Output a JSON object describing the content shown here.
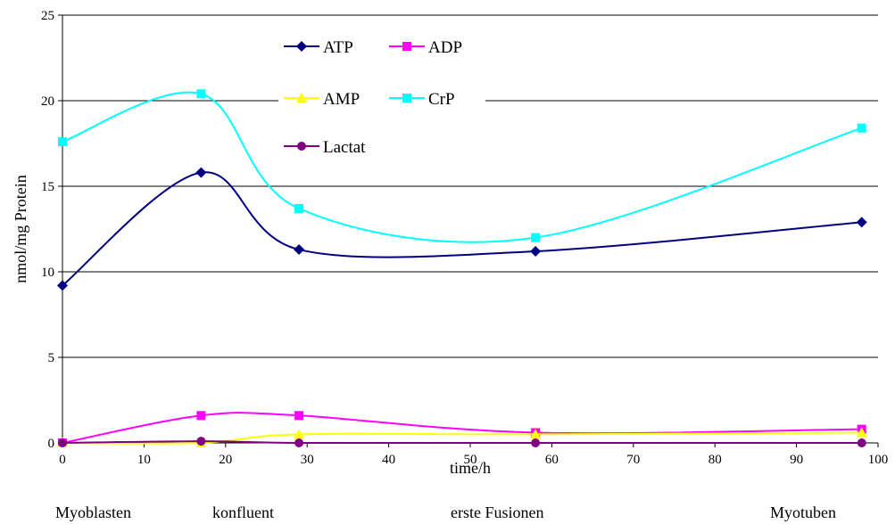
{
  "chart_data": {
    "type": "line",
    "title": "",
    "xlabel": "time/h",
    "ylabel": "nmol/mg Protein",
    "xlim": [
      0,
      100
    ],
    "ylim": [
      0,
      25
    ],
    "x_ticks": [
      0,
      10,
      20,
      30,
      40,
      50,
      60,
      70,
      80,
      90,
      100
    ],
    "y_ticks": [
      0,
      5,
      10,
      15,
      20,
      25
    ],
    "grid": "horizontal",
    "smooth": true,
    "legend_placement": "top-center",
    "phase_labels": [
      {
        "text": "Myoblasten",
        "x": 0
      },
      {
        "text": "konfluent",
        "x": 17
      },
      {
        "text": "erste Fusionen",
        "x": 58
      },
      {
        "text": "Myotuben",
        "x": 98
      }
    ],
    "series": [
      {
        "name": "ATP",
        "color": "#000080",
        "marker": "diamond",
        "x": [
          0,
          17,
          29,
          58,
          98
        ],
        "y": [
          9.2,
          15.8,
          11.3,
          11.2,
          12.9
        ]
      },
      {
        "name": "ADP",
        "color": "#FF00FF",
        "marker": "square",
        "x": [
          0,
          17,
          29,
          58,
          98
        ],
        "y": [
          0.0,
          1.6,
          1.6,
          0.6,
          0.8
        ]
      },
      {
        "name": "AMP",
        "color": "#FFFF00",
        "marker": "triangle",
        "x": [
          0,
          17,
          29,
          58,
          98
        ],
        "y": [
          0.0,
          0.0,
          0.5,
          0.5,
          0.6
        ]
      },
      {
        "name": "CrP",
        "color": "#00FFFF",
        "marker": "square",
        "x": [
          0,
          17,
          29,
          58,
          98
        ],
        "y": [
          17.6,
          20.4,
          13.7,
          12.0,
          18.4
        ]
      },
      {
        "name": "Lactat",
        "color": "#800080",
        "marker": "circle",
        "x": [
          0,
          17,
          29,
          58,
          98
        ],
        "y": [
          0.0,
          0.1,
          0.0,
          0.0,
          0.0
        ]
      }
    ]
  }
}
